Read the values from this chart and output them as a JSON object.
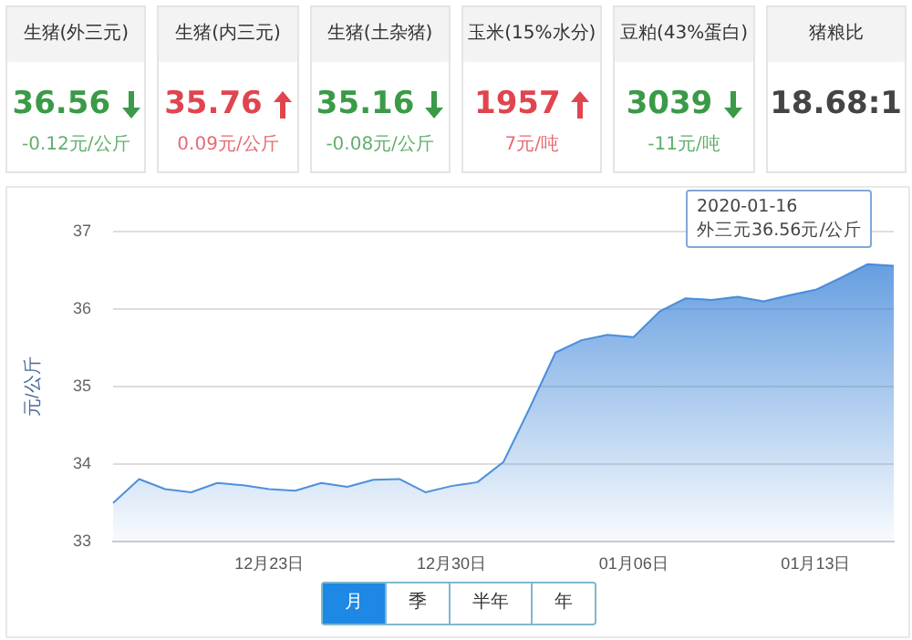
{
  "chart_data": [
    {
      "type": "other",
      "categories": [
        "生猪(外三元)",
        "生猪(内三元)",
        "生猪(土杂猪)",
        "玉米(15%水分)",
        "豆粕(43%蛋白)",
        "猪粮比"
      ],
      "values": [
        -0.12,
        0.09,
        -0.08,
        7,
        -11,
        null
      ],
      "value_labels": [
        "-0.12元/公斤",
        "0.09元/公斤",
        "-0.08元/公斤",
        "7元/吨",
        "-11元/吨",
        null
      ],
      "annotations": [
        "36.56",
        "35.76",
        "35.16",
        "1957",
        "3039",
        "18.68:1"
      ]
    },
    {
      "type": "area",
      "ylabel": "元/公斤",
      "color": "#3d85d8",
      "categories": [
        null,
        null,
        null,
        null,
        null,
        null,
        "12月23日",
        null,
        null,
        null,
        null,
        null,
        null,
        "12月30日",
        null,
        null,
        null,
        null,
        null,
        null,
        "01月06日",
        null,
        null,
        null,
        null,
        null,
        null,
        "01月13日",
        null,
        null,
        null
      ],
      "values": [
        33.5,
        33.81,
        33.68,
        33.64,
        33.76,
        33.73,
        33.68,
        33.66,
        33.76,
        33.71,
        33.8,
        33.81,
        33.64,
        33.72,
        33.77,
        34.03,
        34.72,
        35.44,
        35.6,
        35.67,
        35.64,
        35.97,
        36.14,
        36.12,
        36.16,
        36.1,
        36.18,
        36.25,
        36.41,
        36.58,
        36.56
      ],
      "ylim": [
        33,
        37
      ],
      "yticks": [
        33,
        34,
        35,
        36,
        37
      ],
      "grid": "y",
      "legend": false,
      "marker": "none",
      "annotations": [
        "2020-01-16",
        "外三元36.56元/公斤",
        "月",
        "季",
        "半年",
        "年"
      ]
    }
  ]
}
